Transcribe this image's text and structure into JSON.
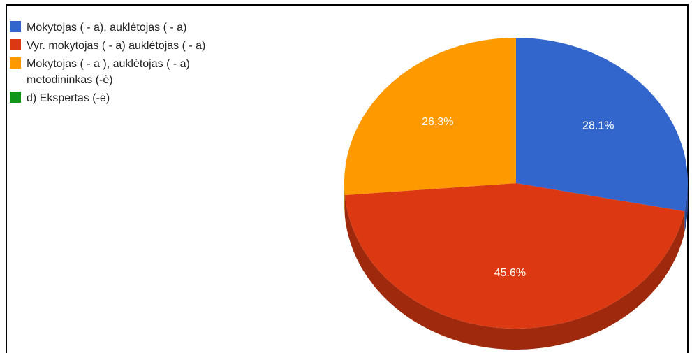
{
  "chart_data": {
    "type": "pie3d",
    "categories": [
      "Mokytojas ( - a), auklėtojas ( - a)",
      "Vyr. mokytojas ( - a) auklėtojas ( - a)",
      "Mokytojas ( - a ), auklėtojas ( - a) metodininkas (-ė)",
      "d) Ekspertas (-ė)"
    ],
    "values": [
      28.1,
      45.6,
      26.3,
      0
    ],
    "value_labels": [
      "28.1%",
      "45.6%",
      "26.3%",
      null
    ],
    "colors": [
      "#3366cc",
      "#dc3912",
      "#ff9900",
      "#109618"
    ],
    "legend": "left"
  }
}
